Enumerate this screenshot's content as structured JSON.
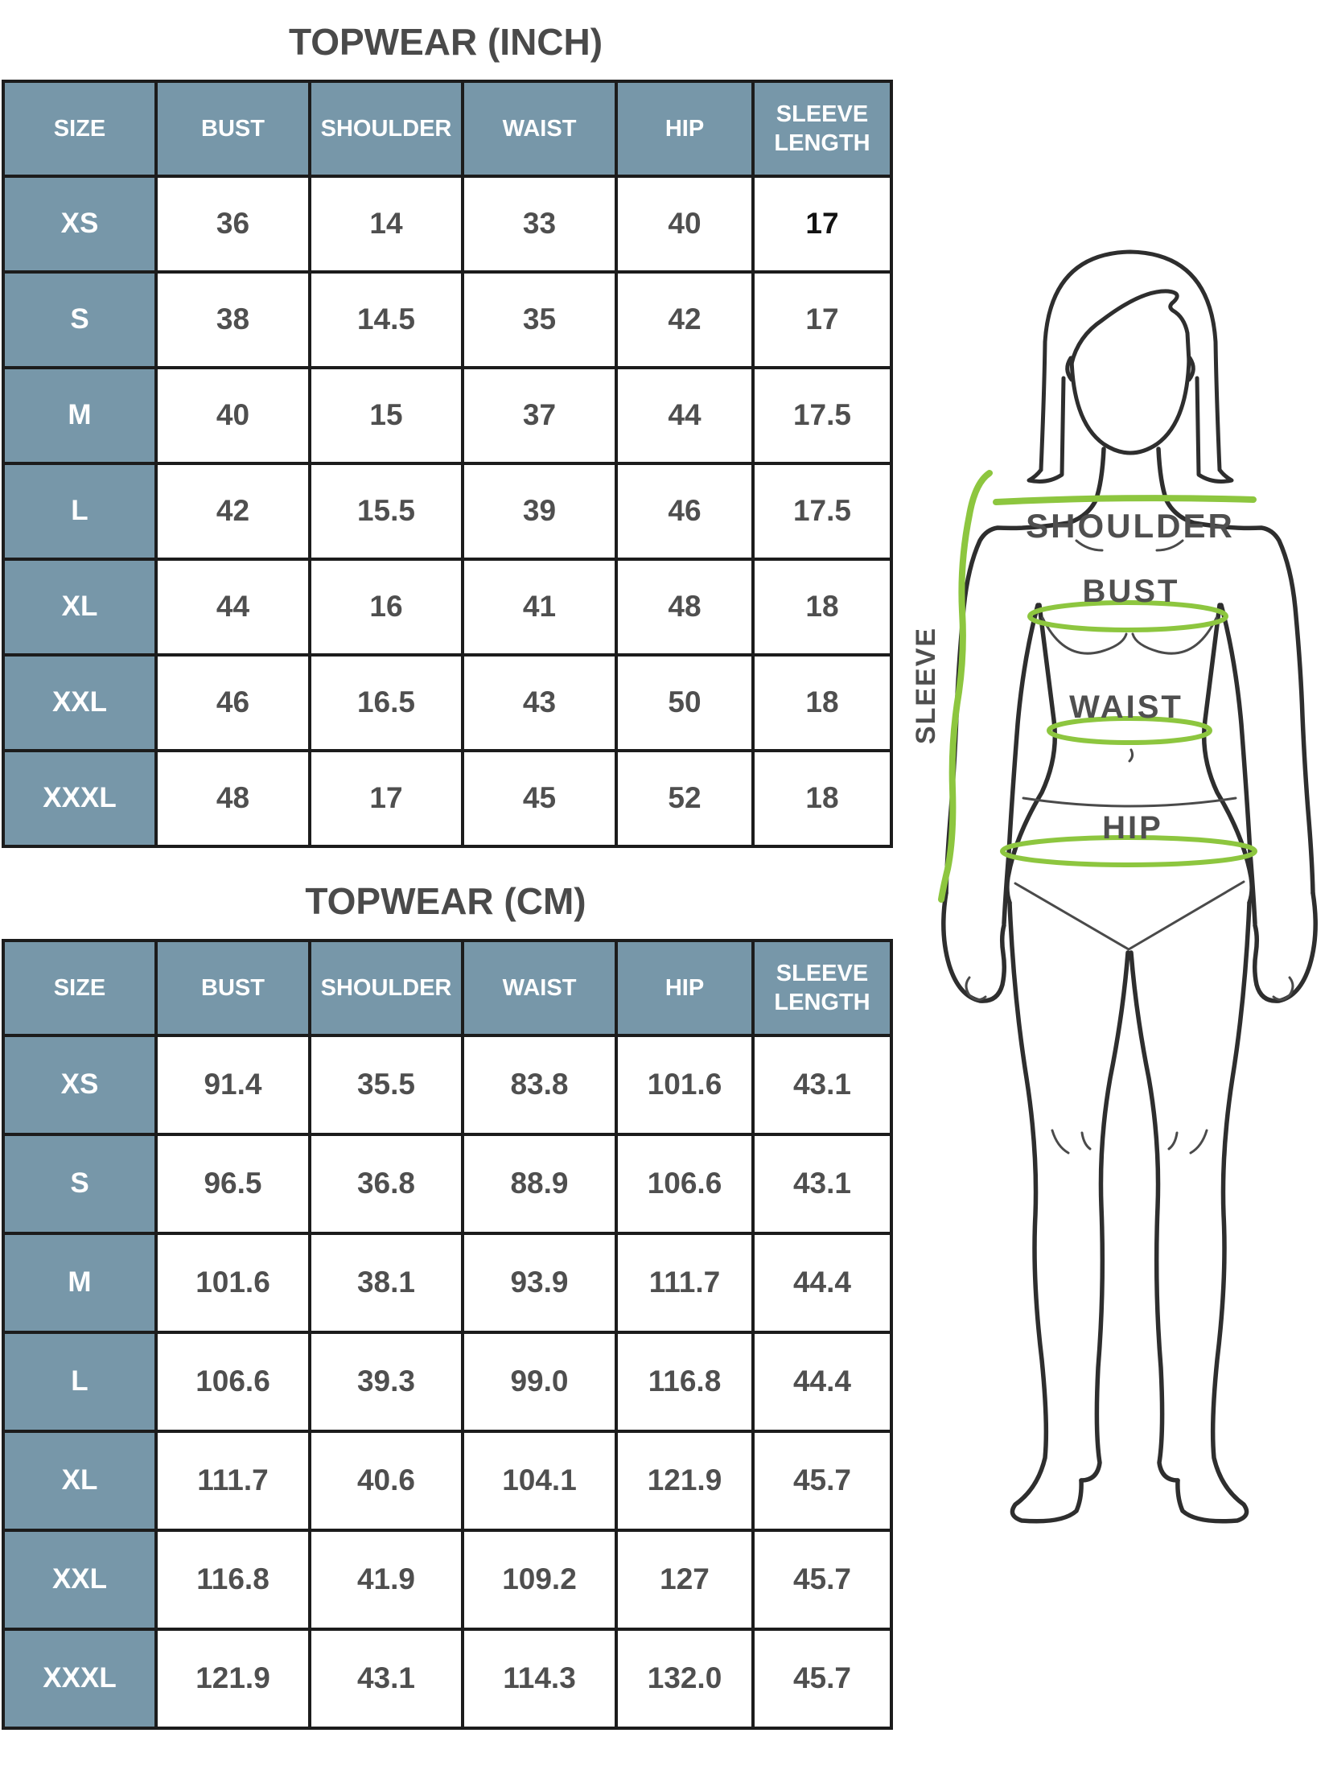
{
  "colors": {
    "header_bg": "#7797a9",
    "header_text": "#ffffff",
    "border": "#1c1c1c",
    "cell_text": "#4f4f4f",
    "emphasis_text": "#121212",
    "title_text": "#4a4a4a",
    "measure_green": "#8dc63f",
    "figure_outline": "#2e2e2e",
    "figure_label": "#4f4f4f"
  },
  "tables": [
    {
      "title": "TOPWEAR (INCH)",
      "columns": [
        "SIZE",
        "BUST",
        "SHOULDER",
        "WAIST",
        "HIP",
        "SLEEVE LENGTH"
      ],
      "rows": [
        {
          "size": "XS",
          "values": [
            "36",
            "14",
            "33",
            "40",
            "17"
          ],
          "emphasis": [
            4
          ]
        },
        {
          "size": "S",
          "values": [
            "38",
            "14.5",
            "35",
            "42",
            "17"
          ]
        },
        {
          "size": "M",
          "values": [
            "40",
            "15",
            "37",
            "44",
            "17.5"
          ]
        },
        {
          "size": "L",
          "values": [
            "42",
            "15.5",
            "39",
            "46",
            "17.5"
          ]
        },
        {
          "size": "XL",
          "values": [
            "44",
            "16",
            "41",
            "48",
            "18"
          ]
        },
        {
          "size": "XXL",
          "values": [
            "46",
            "16.5",
            "43",
            "50",
            "18"
          ]
        },
        {
          "size": "XXXL",
          "values": [
            "48",
            "17",
            "45",
            "52",
            "18"
          ]
        }
      ]
    },
    {
      "title": "TOPWEAR (CM)",
      "columns": [
        "SIZE",
        "BUST",
        "SHOULDER",
        "WAIST",
        "HIP",
        "SLEEVE LENGTH"
      ],
      "rows": [
        {
          "size": "XS",
          "values": [
            "91.4",
            "35.5",
            "83.8",
            "101.6",
            "43.1"
          ]
        },
        {
          "size": "S",
          "values": [
            "96.5",
            "36.8",
            "88.9",
            "106.6",
            "43.1"
          ]
        },
        {
          "size": "M",
          "values": [
            "101.6",
            "38.1",
            "93.9",
            "111.7",
            "44.4"
          ]
        },
        {
          "size": "L",
          "values": [
            "106.6",
            "39.3",
            "99.0",
            "116.8",
            "44.4"
          ]
        },
        {
          "size": "XL",
          "values": [
            "111.7",
            "40.6",
            "104.1",
            "121.9",
            "45.7"
          ]
        },
        {
          "size": "XXL",
          "values": [
            "116.8",
            "41.9",
            "109.2",
            "127",
            "45.7"
          ]
        },
        {
          "size": "XXXL",
          "values": [
            "121.9",
            "43.1",
            "114.3",
            "132.0",
            "45.7"
          ]
        }
      ]
    }
  ],
  "figure": {
    "labels": {
      "shoulder": "SHOULDER",
      "bust": "BUST",
      "waist": "WAIST",
      "hip": "HIP",
      "sleeve": "SLEEVE"
    }
  }
}
